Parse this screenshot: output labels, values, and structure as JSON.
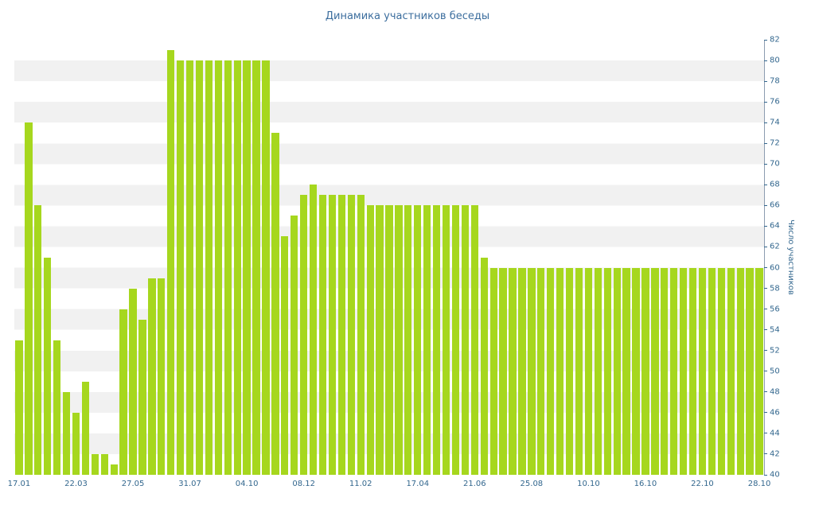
{
  "chart_data": {
    "type": "bar",
    "title": "Динамика участников беседы",
    "xlabel": "",
    "ylabel": "Число участников",
    "ylim": [
      40,
      82
    ],
    "ytick_step": 2,
    "grid": "striped-horizontal-bands",
    "legend": "none",
    "y_axis_position": "right",
    "y_ticks": [
      82,
      80,
      78,
      76,
      74,
      72,
      70,
      68,
      66,
      64,
      62,
      60,
      58,
      56,
      54,
      52,
      50,
      48,
      46,
      44,
      42,
      40
    ],
    "x_tick_labels": [
      "17.01",
      "22.03",
      "27.05",
      "31.07",
      "04.10",
      "08.12",
      "11.02",
      "17.04",
      "21.06",
      "25.08",
      "10.10",
      "16.10",
      "22.10",
      "28.10"
    ],
    "x_tick_interval": 6,
    "values": [
      53,
      74,
      66,
      61,
      53,
      48,
      46,
      49,
      42,
      42,
      41,
      56,
      58,
      55,
      59,
      59,
      81,
      80,
      80,
      80,
      80,
      80,
      80,
      80,
      80,
      80,
      80,
      73,
      63,
      65,
      67,
      68,
      67,
      67,
      67,
      67,
      67,
      66,
      66,
      66,
      66,
      66,
      66,
      66,
      66,
      66,
      66,
      66,
      66,
      61,
      60,
      60,
      60,
      60,
      60,
      60,
      60,
      60,
      60,
      60,
      60,
      60,
      60,
      60,
      60,
      60,
      60,
      60,
      60,
      60,
      60,
      60,
      60,
      60,
      60,
      60,
      60,
      60,
      60
    ],
    "colors": {
      "bar": "#a6d71e",
      "title": "#3c6e9e",
      "tick_labels": "#33678e",
      "stripe": "#f1f1f1",
      "spine": "#8c9cb0",
      "background": "#ffffff"
    }
  }
}
